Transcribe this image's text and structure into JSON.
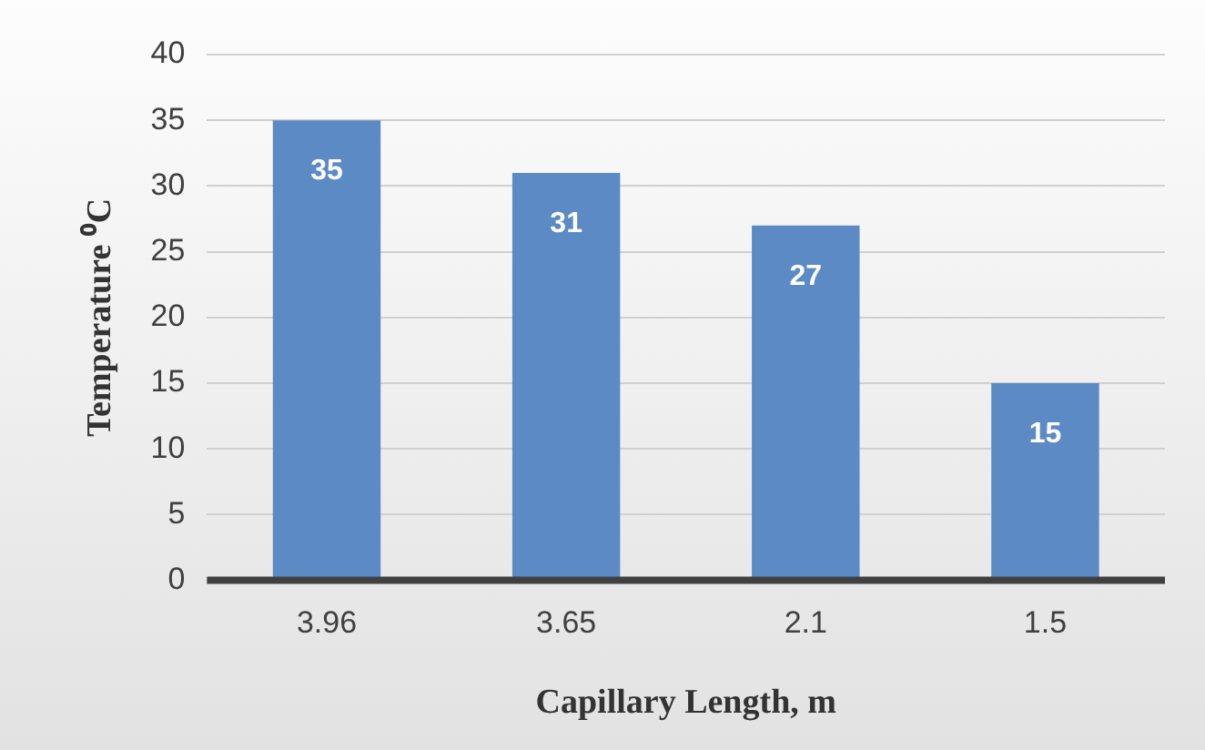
{
  "chart_data": {
    "type": "bar",
    "xlabel": "Capillary Length, m",
    "ylabel": "Temperature ⁰C",
    "categories": [
      "3.96",
      "3.65",
      "2.1",
      "1.5"
    ],
    "values": [
      35,
      31,
      27,
      15
    ],
    "color": "#5b8ac4",
    "ylim": [
      0,
      40
    ],
    "yticks": [
      0,
      5,
      10,
      15,
      20,
      25,
      30,
      35,
      40
    ],
    "grid": "y",
    "data_labels": true,
    "legend": false
  }
}
